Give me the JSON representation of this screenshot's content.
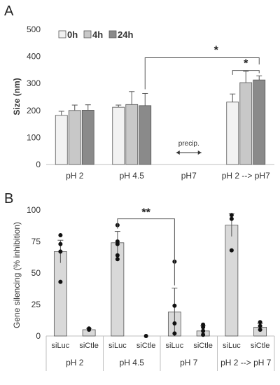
{
  "colors": {
    "h0": "#f2f2f2",
    "h4": "#c8c8c8",
    "h24": "#8a8a8a",
    "barB": "#d9d9d9",
    "outline": "#555555",
    "axis": "#bfbfbf",
    "dot": "#111111"
  },
  "chart_data": [
    {
      "panel": "A",
      "type": "bar",
      "ylabel": "Size (nm)",
      "ylim": [
        0,
        500
      ],
      "yticks": [
        0,
        100,
        200,
        300,
        400,
        500
      ],
      "categories": [
        "pH 2",
        "pH 4.5",
        "pH7",
        "pH 2 --> pH7"
      ],
      "series": [
        {
          "name": "0h",
          "color_key": "h0",
          "values": [
            182,
            212,
            null,
            231
          ],
          "errors": [
            15,
            8,
            null,
            30
          ]
        },
        {
          "name": "4h",
          "color_key": "h4",
          "values": [
            200,
            222,
            null,
            303
          ],
          "errors": [
            20,
            48,
            null,
            42
          ]
        },
        {
          "name": "24h",
          "color_key": "h24",
          "values": [
            201,
            218,
            null,
            313
          ],
          "errors": [
            20,
            45,
            null,
            15
          ]
        }
      ],
      "annotation": "precip.",
      "significance": [
        {
          "label": "*",
          "between": [
            1,
            3
          ]
        },
        {
          "label": "*",
          "between": [
            3,
            3
          ]
        }
      ],
      "legend_position": "top-left"
    },
    {
      "panel": "B",
      "type": "bar",
      "ylabel": "Gene silencing (% inhibition)",
      "ylim": [
        0,
        100
      ],
      "yticks": [
        0,
        25,
        50,
        75,
        100
      ],
      "groups": [
        "pH 2",
        "pH 4.5",
        "pH 7",
        "pH 2 --> pH 7"
      ],
      "sublabels": [
        "siLuc",
        "siCtle"
      ],
      "bars": [
        {
          "group": 0,
          "sub": 0,
          "value": 67,
          "error": 9,
          "points": [
            43,
            67,
            73,
            80
          ]
        },
        {
          "group": 0,
          "sub": 1,
          "value": 5,
          "error": 1,
          "points": [
            5,
            6
          ]
        },
        {
          "group": 1,
          "sub": 0,
          "value": 74,
          "error": 9,
          "points": [
            61,
            64,
            73,
            75,
            88
          ]
        },
        {
          "group": 1,
          "sub": 1,
          "value": 0,
          "error": 0,
          "points": [
            0
          ]
        },
        {
          "group": 2,
          "sub": 0,
          "value": 19,
          "error": 19,
          "points": [
            2,
            10,
            24,
            59
          ]
        },
        {
          "group": 2,
          "sub": 1,
          "value": 4,
          "error": 4,
          "points": [
            1,
            4,
            7,
            9
          ]
        },
        {
          "group": 3,
          "sub": 0,
          "value": 88,
          "error": 9,
          "points": [
            68,
            93,
            96
          ]
        },
        {
          "group": 3,
          "sub": 1,
          "value": 7,
          "error": 3,
          "points": [
            5,
            8,
            11
          ]
        }
      ],
      "significance": [
        {
          "label": "**",
          "between": [
            1,
            2
          ]
        }
      ]
    }
  ],
  "panels": {
    "a_letter": "A",
    "b_letter": "B"
  }
}
